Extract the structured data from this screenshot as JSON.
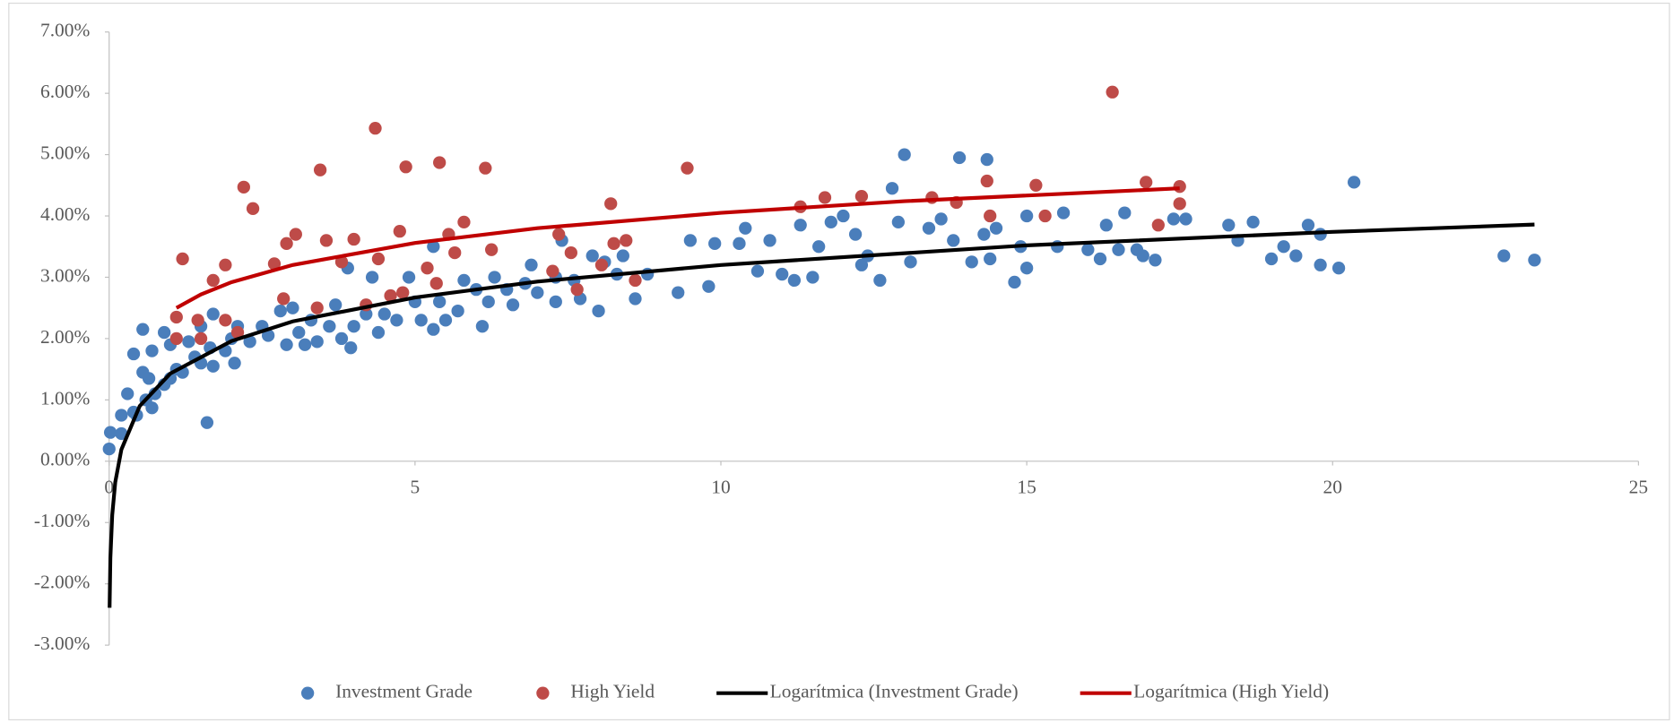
{
  "chart_data": {
    "type": "scatter",
    "xlim": [
      0,
      25
    ],
    "xticks": [
      0,
      5,
      10,
      15,
      20,
      25
    ],
    "ylim": [
      -3,
      7
    ],
    "yticks": [
      {
        "value": -3,
        "label": "-3.00%"
      },
      {
        "value": -2,
        "label": "-2.00%"
      },
      {
        "value": -1,
        "label": "-1.00%"
      },
      {
        "value": 0,
        "label": "0.00%"
      },
      {
        "value": 1,
        "label": "1.00%"
      },
      {
        "value": 2,
        "label": "2.00%"
      },
      {
        "value": 3,
        "label": "3.00%"
      },
      {
        "value": 4,
        "label": "4.00%"
      },
      {
        "value": 5,
        "label": "5.00%"
      },
      {
        "value": 6,
        "label": "6.00%"
      },
      {
        "value": 7,
        "label": "7.00%"
      }
    ],
    "grid": false,
    "legend": "bottom",
    "series": [
      {
        "name": "Investment Grade",
        "type": "scatter",
        "color": "#4a7ebb",
        "x": [
          0,
          0.02,
          0.2,
          0.2,
          0.3,
          0.4,
          0.45,
          0.4,
          0.55,
          0.55,
          0.6,
          0.65,
          0.7,
          0.7,
          0.75,
          0.9,
          0.9,
          1.0,
          1.0,
          1.1,
          1.2,
          1.3,
          1.4,
          1.5,
          1.5,
          1.6,
          1.65,
          1.7,
          1.7,
          1.9,
          2.0,
          2.05,
          2.1,
          2.3,
          2.5,
          2.6,
          2.8,
          2.9,
          3.0,
          3.1,
          3.2,
          3.3,
          3.4,
          3.6,
          3.7,
          3.8,
          3.9,
          3.95,
          4.0,
          4.2,
          4.3,
          4.4,
          4.5,
          4.7,
          4.9,
          5.0,
          5.1,
          5.3,
          5.3,
          5.4,
          5.5,
          5.7,
          5.8,
          6.0,
          6.1,
          6.2,
          6.3,
          6.5,
          6.6,
          6.8,
          6.9,
          7.0,
          7.3,
          7.3,
          7.4,
          7.6,
          7.7,
          7.9,
          8.0,
          8.1,
          8.3,
          8.4,
          8.6,
          8.8,
          9.3,
          9.5,
          9.8,
          9.9,
          10.3,
          10.4,
          10.6,
          10.8,
          11.0,
          11.2,
          11.3,
          11.5,
          11.6,
          11.8,
          12.0,
          12.2,
          12.3,
          12.4,
          12.6,
          12.8,
          12.9,
          13.0,
          13.1,
          13.4,
          13.6,
          13.8,
          13.9,
          14.1,
          14.3,
          14.35,
          14.4,
          14.5,
          14.8,
          14.9,
          15.0,
          15.0,
          15.5,
          15.6,
          16.0,
          16.2,
          16.3,
          16.5,
          16.6,
          16.8,
          16.9,
          17.1,
          17.4,
          17.6,
          18.3,
          18.45,
          18.7,
          19.0,
          19.2,
          19.4,
          19.6,
          19.8,
          19.8,
          20.1,
          20.35,
          22.8,
          23.3
        ],
        "values": [
          0.2,
          0.47,
          0.45,
          0.75,
          1.1,
          0.8,
          0.75,
          1.75,
          1.45,
          2.15,
          1.0,
          1.35,
          0.87,
          1.8,
          1.1,
          2.1,
          1.25,
          1.9,
          1.35,
          1.5,
          1.45,
          1.95,
          1.7,
          2.2,
          1.6,
          0.63,
          1.85,
          2.4,
          1.55,
          1.8,
          2.0,
          1.6,
          2.2,
          1.95,
          2.2,
          2.05,
          2.45,
          1.9,
          2.5,
          2.1,
          1.9,
          2.3,
          1.95,
          2.2,
          2.55,
          2.0,
          3.15,
          1.85,
          2.2,
          2.4,
          3.0,
          2.1,
          2.4,
          2.3,
          3.0,
          2.6,
          2.3,
          3.5,
          2.15,
          2.6,
          2.3,
          2.45,
          2.95,
          2.8,
          2.2,
          2.6,
          3.0,
          2.8,
          2.55,
          2.9,
          3.2,
          2.75,
          3.0,
          2.6,
          3.6,
          2.95,
          2.65,
          3.35,
          2.45,
          3.25,
          3.05,
          3.35,
          2.65,
          3.05,
          2.75,
          3.6,
          2.85,
          3.55,
          3.55,
          3.8,
          3.1,
          3.6,
          3.05,
          2.95,
          3.85,
          3.0,
          3.5,
          3.9,
          4.0,
          3.7,
          3.2,
          3.35,
          2.95,
          4.45,
          3.9,
          5.0,
          3.25,
          3.8,
          3.95,
          3.6,
          4.95,
          3.25,
          3.7,
          4.92,
          3.3,
          3.8,
          2.92,
          3.5,
          3.15,
          4.0,
          3.5,
          4.05,
          3.45,
          3.3,
          3.85,
          3.45,
          4.05,
          3.45,
          3.35,
          3.28,
          3.95,
          3.95,
          3.85,
          3.6,
          3.9,
          3.3,
          3.5,
          3.35,
          3.85,
          3.2,
          3.7,
          3.15,
          4.55,
          3.35,
          3.28
        ]
      },
      {
        "name": "High Yield",
        "type": "scatter",
        "color": "#be4b48",
        "x": [
          1.1,
          1.1,
          1.2,
          1.45,
          1.5,
          1.7,
          1.9,
          1.9,
          2.1,
          2.2,
          2.35,
          2.7,
          2.85,
          2.9,
          3.05,
          3.4,
          3.45,
          3.55,
          3.8,
          4.0,
          4.2,
          4.35,
          4.4,
          4.6,
          4.75,
          4.85,
          4.8,
          5.2,
          5.35,
          5.4,
          5.55,
          5.65,
          5.8,
          6.15,
          6.25,
          7.25,
          7.35,
          7.55,
          7.65,
          8.05,
          8.2,
          8.25,
          8.45,
          8.6,
          9.45,
          11.3,
          11.7,
          12.3,
          13.45,
          13.85,
          14.35,
          14.4,
          15.15,
          15.3,
          16.4,
          16.95,
          17.15,
          17.5,
          17.5
        ],
        "values": [
          2.35,
          2.0,
          3.3,
          2.3,
          2.0,
          2.95,
          3.2,
          2.3,
          2.1,
          4.47,
          4.12,
          3.22,
          2.65,
          3.55,
          3.7,
          2.5,
          4.75,
          3.6,
          3.25,
          3.62,
          2.55,
          5.43,
          3.3,
          2.7,
          3.75,
          4.8,
          2.75,
          3.15,
          2.9,
          4.87,
          3.7,
          3.4,
          3.9,
          4.78,
          3.45,
          3.1,
          3.7,
          3.4,
          2.8,
          3.2,
          4.2,
          3.55,
          3.6,
          2.95,
          4.78,
          4.15,
          4.3,
          4.32,
          4.3,
          4.22,
          4.57,
          4.0,
          4.5,
          4.0,
          6.02,
          4.55,
          3.85,
          4.48,
          4.2
        ]
      },
      {
        "name": "Logarítmica (Investment Grade)",
        "type": "line",
        "color": "#000000",
        "x": [
          0.007,
          0.02,
          0.05,
          0.1,
          0.2,
          0.5,
          1,
          2,
          3,
          5,
          7,
          10,
          15,
          20,
          23.3
        ],
        "values": [
          -2.39,
          -1.58,
          -0.88,
          -0.34,
          0.19,
          0.9,
          1.43,
          1.96,
          2.28,
          2.67,
          2.93,
          3.2,
          3.52,
          3.74,
          3.86
        ]
      },
      {
        "name": "Logarítmica (High Yield)",
        "type": "line",
        "color": "#c00000",
        "x": [
          1.1,
          1.5,
          2,
          3,
          5,
          7,
          10,
          13,
          17.5
        ],
        "values": [
          2.5,
          2.72,
          2.92,
          3.2,
          3.56,
          3.8,
          4.05,
          4.24,
          4.45
        ]
      }
    ]
  }
}
